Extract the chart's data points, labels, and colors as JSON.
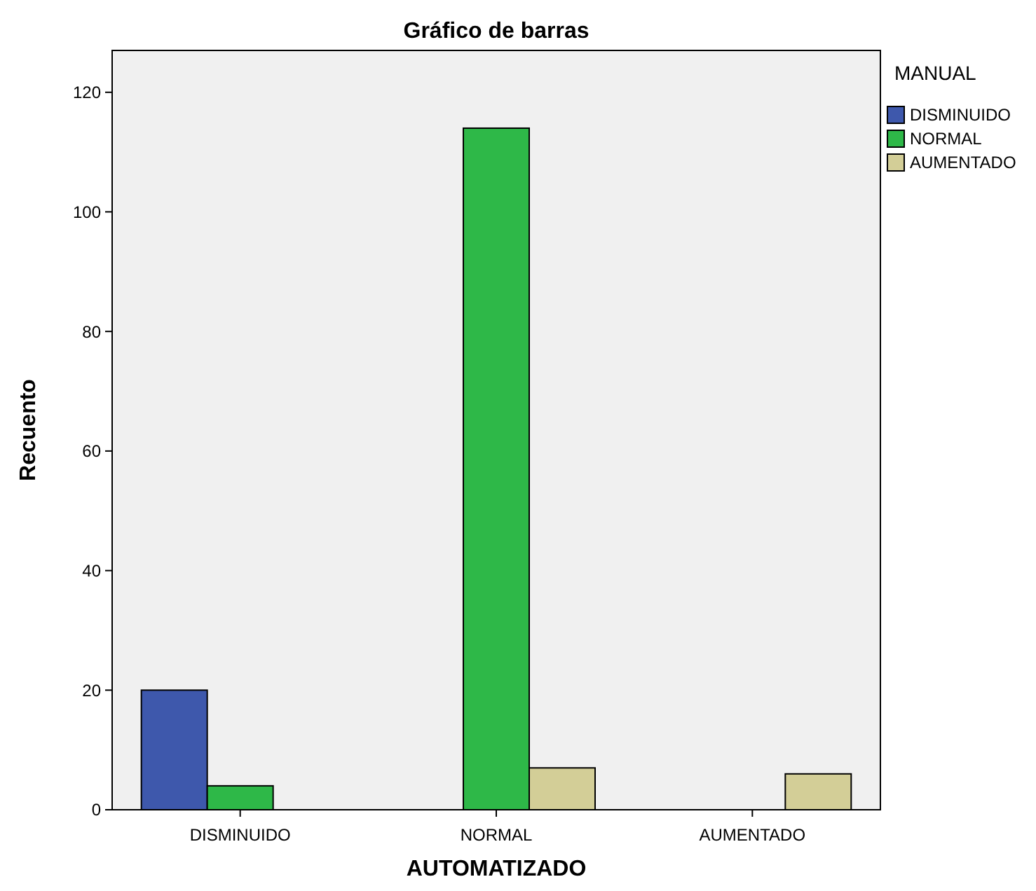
{
  "chart_data": {
    "type": "bar",
    "title": "Gráfico de barras",
    "xlabel": "AUTOMATIZADO",
    "ylabel": "Recuento",
    "legend_title": "MANUAL",
    "legend": "top right",
    "grid": false,
    "categories": [
      "DISMINUIDO",
      "NORMAL",
      "AUMENTADO"
    ],
    "series": [
      {
        "name": "DISMINUIDO",
        "color": "#3e58ac",
        "values": [
          20,
          null,
          null
        ]
      },
      {
        "name": "NORMAL",
        "color": "#2eb848",
        "values": [
          4,
          114,
          null
        ]
      },
      {
        "name": "AUMENTADO",
        "color": "#d3ce97",
        "values": [
          null,
          7,
          6
        ]
      }
    ],
    "ylim": [
      0,
      127
    ],
    "yticks": [
      0,
      20,
      40,
      60,
      80,
      100,
      120
    ]
  }
}
